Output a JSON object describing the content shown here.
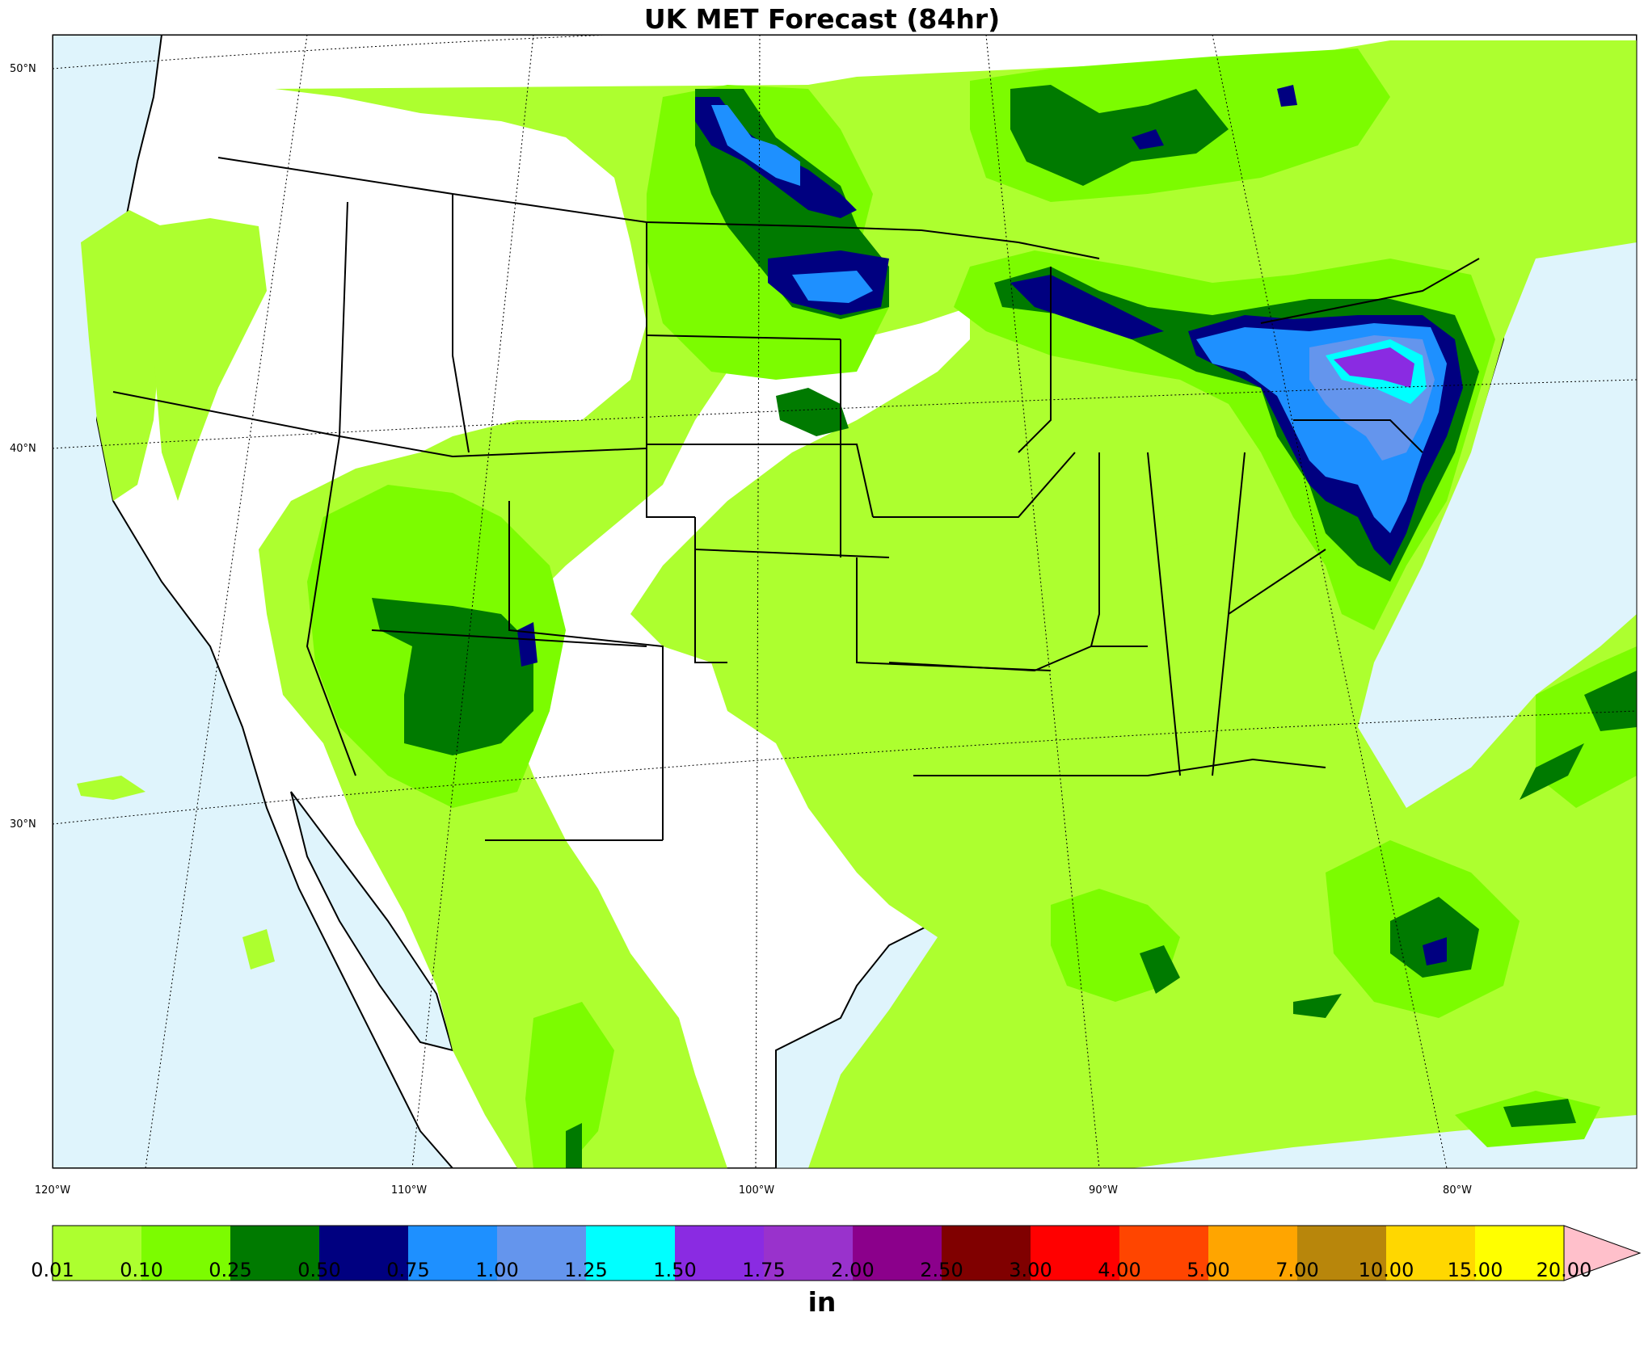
{
  "title": "UK MET Forecast (84hr)",
  "lat_labels": [
    "50°N",
    "40°N",
    "30°N"
  ],
  "lon_labels": [
    "120°W",
    "110°W",
    "100°W",
    "90°W",
    "80°W"
  ],
  "colorbar": {
    "unit": "in",
    "ticks": [
      "0.01",
      "0.10",
      "0.25",
      "0.50",
      "0.75",
      "1.00",
      "1.25",
      "1.50",
      "1.75",
      "2.00",
      "2.50",
      "3.00",
      "4.00",
      "5.00",
      "7.00",
      "10.00",
      "15.00",
      "20.00"
    ],
    "colors": [
      "#adff2f",
      "#7cfc00",
      "#007a00",
      "#000080",
      "#1e90ff",
      "#6495ed",
      "#00ffff",
      "#8a2be2",
      "#9932cc",
      "#8b008b",
      "#800000",
      "#ff0000",
      "#ff4500",
      "#ffa500",
      "#b8860b",
      "#ffd700",
      "#ffff00"
    ],
    "over_color": "#ffc0cb"
  },
  "colors": {
    "water": "#dff4fc",
    "land": "#ffffff",
    "border": "#000000"
  }
}
